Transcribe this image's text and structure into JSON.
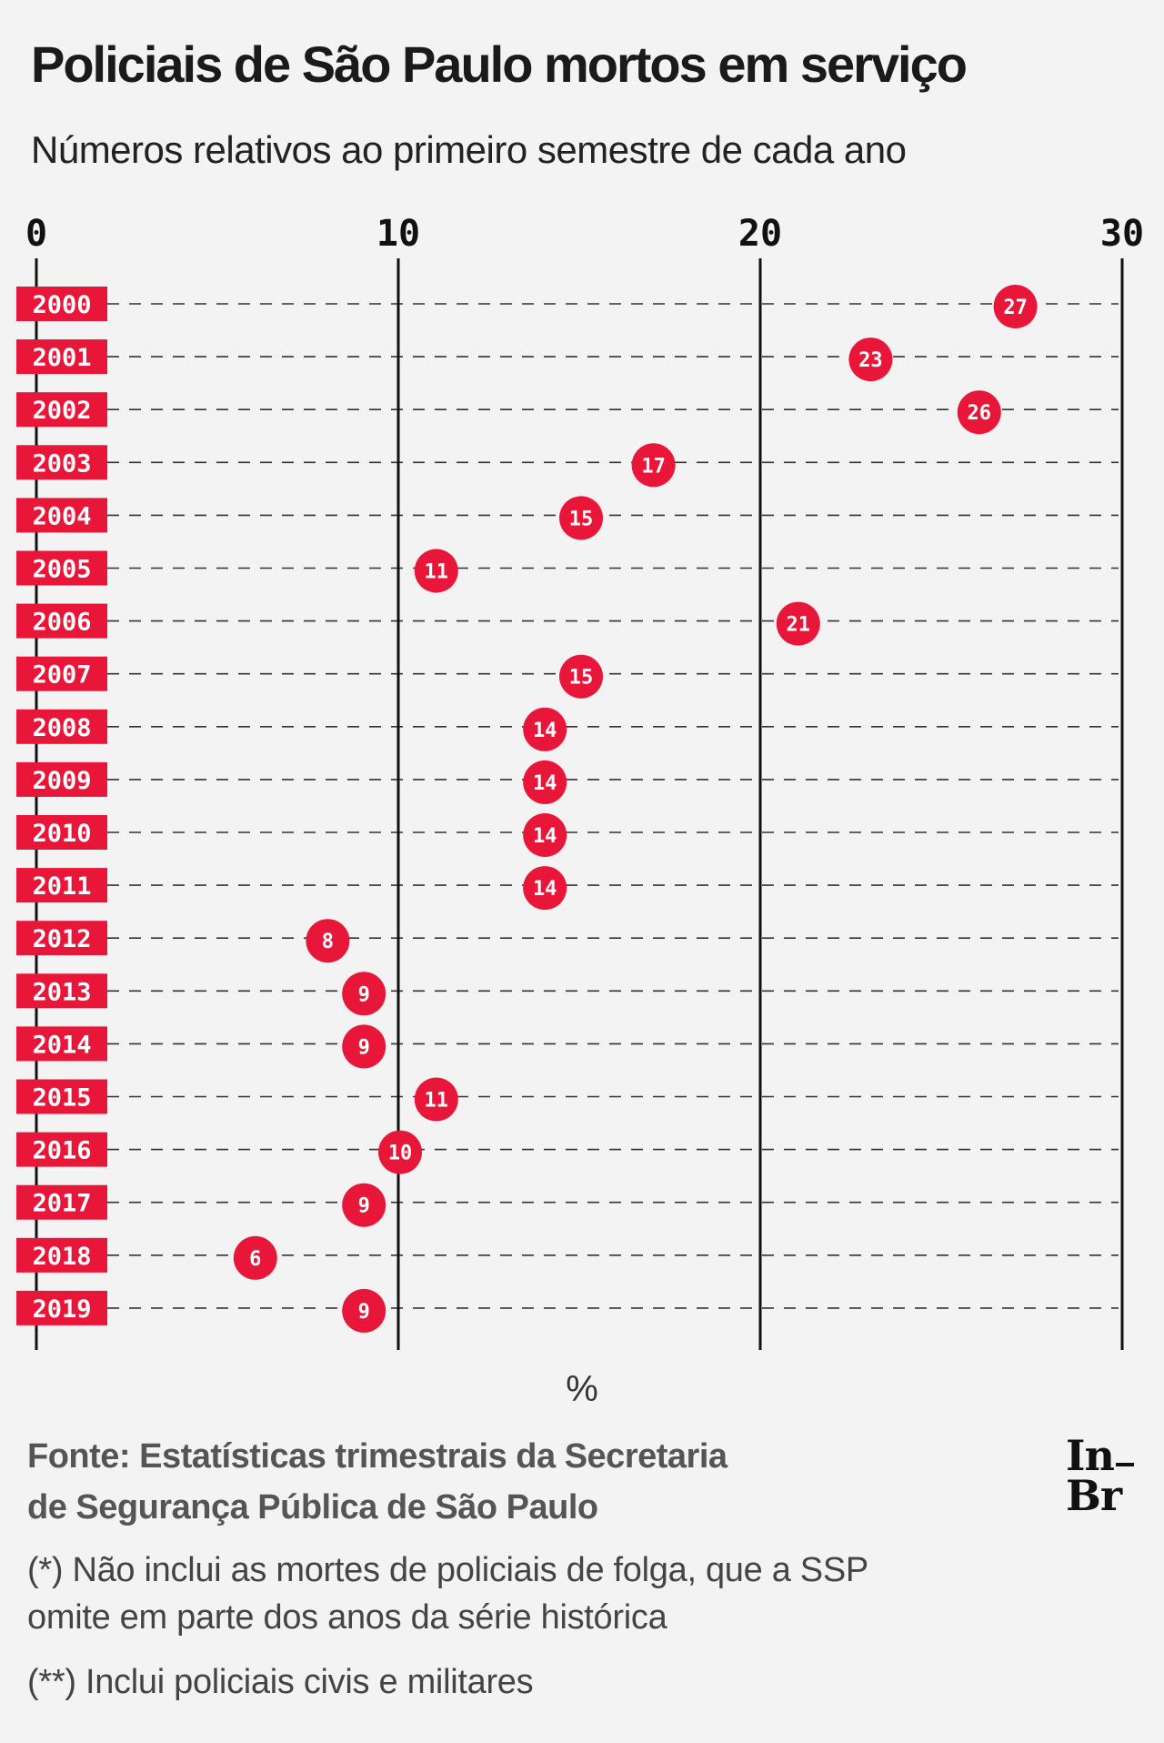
{
  "title": "Policiais de São Paulo mortos em serviço",
  "subtitle": "Números relativos ao primeiro semestre de cada ano",
  "chart_data": {
    "type": "scatter",
    "orientation": "horizontal-dot",
    "title": "Policiais de São Paulo mortos em serviço",
    "subtitle": "Números relativos ao primeiro semestre de cada ano",
    "xlabel": "%",
    "ylabel": "",
    "xlim": [
      0,
      30
    ],
    "xticks": [
      "0",
      "10",
      "20",
      "30"
    ],
    "grid": "dashed horizontal per year, solid vertical at ticks",
    "categories": [
      "2000",
      "2001",
      "2002",
      "2003",
      "2004",
      "2005",
      "2006",
      "2007",
      "2008",
      "2009",
      "2010",
      "2011",
      "2012",
      "2013",
      "2014",
      "2015",
      "2016",
      "2017",
      "2018",
      "2019"
    ],
    "values": [
      27,
      23,
      26,
      17,
      15,
      11,
      21,
      15,
      14,
      14,
      14,
      14,
      8,
      9,
      9,
      11,
      10,
      9,
      6,
      9
    ],
    "labels": [
      "27",
      "23",
      "26",
      "17",
      "15",
      "11",
      "21",
      "15",
      "14",
      "14",
      "14",
      "14",
      "8",
      "9",
      "9",
      "11",
      "10",
      "9",
      "6",
      "9"
    ]
  },
  "unit_label": "%",
  "source": {
    "line1": "Fonte: Estatísticas trimestrais da Secretaria",
    "line2": "de Segurança Pública de São Paulo"
  },
  "notes": {
    "note1_line1": "(*) Não inclui as mortes de policiais de folga, que a SSP",
    "note1_line2": "omite em parte dos anos da série histórica",
    "note2": "(**) Inclui policiais civis e militares"
  },
  "logo": {
    "line1": "In",
    "line2": "Br"
  },
  "colors": {
    "accent": "#e8173a",
    "background": "#f3f3f3",
    "text": "#1a1a1a",
    "source_text": "#555555"
  }
}
